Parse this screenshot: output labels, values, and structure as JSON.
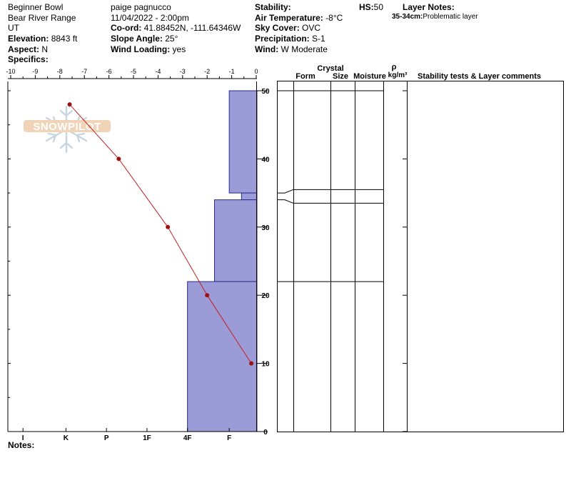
{
  "header": {
    "col1": {
      "location": "Beginner Bowl",
      "range": "Bear River Range",
      "state": "UT",
      "elevation_label": "Elevation:",
      "elevation_value": " 8843 ft",
      "aspect_label": "Aspect:",
      "aspect_value": " N",
      "specifics_label": "Specifics:"
    },
    "col2": {
      "observer": "paige pagnucco",
      "datetime": "11/04/2022 - 2:00pm",
      "coord_label": "Co-ord:",
      "coord_value": " 41.88452N, -111.64346W",
      "slope_label": "Slope Angle:",
      "slope_value": " 25°",
      "wind_loading_label": "Wind Loading:",
      "wind_loading_value": " yes"
    },
    "col3": {
      "stability_label": "Stability:",
      "air_temp_label": "Air Temperature:",
      "air_temp_value": " -8°C",
      "sky_label": "Sky Cover:",
      "sky_value": " OVC",
      "precip_label": "Precipitation:",
      "precip_value": " S-1",
      "wind_label": "Wind:",
      "wind_value": "  W Moderate"
    },
    "hs_label": "HS:",
    "hs_value": "50",
    "layer_notes_label": "Layer Notes:",
    "layer_note_depth": "35-34cm:",
    "layer_note_text": "Problematic layer"
  },
  "notes_label": "Notes:",
  "logo_text": "SNOWPILOT",
  "table": {
    "crystal": "Crystal",
    "form": "Form",
    "size": "Size",
    "moisture": "Moisture",
    "rho": "ρ",
    "density_unit": "kg/m³",
    "comments": "Stability tests & Layer comments"
  },
  "chart_data": {
    "type": "line",
    "temperature_axis": {
      "ticks": [
        -10,
        -9,
        -8,
        -7,
        -6,
        -5,
        -4,
        -3,
        -2,
        -1,
        0
      ],
      "labels": [
        "-10",
        "-9",
        "-8",
        "-7",
        "-6",
        "-5",
        "-4",
        "-3",
        "-2",
        "-1",
        "0"
      ],
      "range": [
        -10,
        0
      ]
    },
    "depth_axis": {
      "ticks": [
        0,
        10,
        20,
        30,
        40,
        50
      ],
      "labels": [
        "0",
        "10",
        "20",
        "30",
        "40",
        "50"
      ],
      "range": [
        0,
        50
      ]
    },
    "hardness_axis": {
      "labels": [
        "I",
        "K",
        "P",
        "1F",
        "4F",
        "F"
      ],
      "values": [
        -9.5,
        -7.75,
        -6.1,
        -4.45,
        -2.8,
        -1.1
      ]
    },
    "temperature_profile": {
      "depth": [
        48,
        40,
        30,
        20,
        10
      ],
      "temp": [
        -7.6,
        -5.6,
        -3.6,
        -2.0,
        -0.2
      ]
    },
    "hardness_layers": [
      {
        "top": 50,
        "bottom": 35,
        "hardness_temp": -1.1
      },
      {
        "top": 35,
        "bottom": 34,
        "hardness_temp": -0.6
      },
      {
        "top": 34,
        "bottom": 22,
        "hardness_temp": -1.7
      },
      {
        "top": 22,
        "bottom": 0,
        "hardness_temp": -2.8
      }
    ],
    "stratigraphy_lines": [
      50,
      35.5,
      33.5,
      22
    ],
    "colors": {
      "layer_fill": "#9b9bd8",
      "layer_stroke": "#2a2a8a",
      "temp_line": "#c02020",
      "temp_point": "#a01010"
    }
  }
}
